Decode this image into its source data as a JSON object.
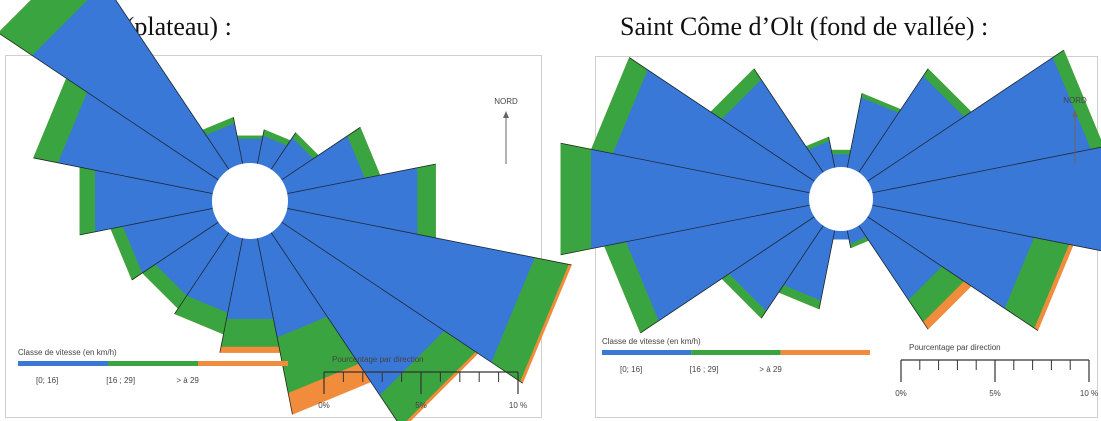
{
  "titles": {
    "left": "Aurillac (plateau) :",
    "right": "Saint Côme d’Olt (fond de vallée) :"
  },
  "colors": {
    "class_0_16": "#3a78d8",
    "class_16_29": "#3aa440",
    "class_gt_29": "#f08c3c",
    "rose_edges": "#1a1a1a",
    "calm_circle": "#ffffff"
  },
  "chart_data": [
    {
      "type": "wind-rose",
      "title": "Aurillac (plateau) :",
      "north_label": "NORD",
      "legend": {
        "title": "Classe de vitesse (en km/h)",
        "classes": [
          "[0; 16]",
          "[16 ; 29]",
          "> à 29"
        ]
      },
      "scale": {
        "title": "Pourcentage par direction",
        "tick_labels": [
          "0%",
          "5%",
          "10 %"
        ],
        "max_percent": 10
      },
      "directions_deg": [
        0,
        22.5,
        45,
        67.5,
        90,
        112.5,
        135,
        157.5,
        180,
        202.5,
        225,
        247.5,
        270,
        292.5,
        315,
        337.5
      ],
      "series": [
        {
          "name": "[0; 16]",
          "values": [
            0.8,
            0.9,
            1.2,
            2.5,
            4.2,
            8.0,
            6.2,
            3.2,
            2.6,
            2.4,
            2.4,
            2.9,
            3.8,
            5.0,
            7.1,
            1.3
          ]
        },
        {
          "name": "[16 ; 29]",
          "values": [
            0.1,
            0.2,
            0.2,
            0.5,
            0.6,
            1.1,
            1.2,
            1.8,
            0.9,
            0.7,
            0.5,
            0.4,
            0.5,
            0.8,
            1.3,
            0.2
          ]
        },
        {
          "name": "> à 29",
          "values": [
            0,
            0,
            0,
            0,
            0,
            0.1,
            0.1,
            0.7,
            0.2,
            0,
            0,
            0,
            0,
            0,
            0,
            0
          ]
        }
      ]
    },
    {
      "type": "wind-rose",
      "title": "Saint Côme d’Olt (fond de vallée) :",
      "north_label": "NORD",
      "legend": {
        "title": "Classe de vitesse (en km/h)",
        "classes": [
          "[0; 16]",
          "[16 ; 29]",
          "> à 29"
        ]
      },
      "scale": {
        "title": "Pourcentage par direction",
        "tick_labels": [
          "0%",
          "5%",
          "10 %"
        ],
        "max_percent": 10
      },
      "directions_deg": [
        0,
        22.5,
        45,
        67.5,
        90,
        112.5,
        135,
        157.5,
        180,
        202.5,
        225,
        247.5,
        270,
        292.5,
        315,
        337.5
      ],
      "series": [
        {
          "name": "[0; 16]",
          "values": [
            0.3,
            1.6,
            2.6,
            5.0,
            5.4,
            3.7,
            2.0,
            0.3,
            0.2,
            1.6,
            2.3,
            4.2,
            5.0,
            4.5,
            2.5,
            0.6
          ]
        },
        {
          "name": "[16 ; 29]",
          "values": [
            0.1,
            0.1,
            0.2,
            0.3,
            0.4,
            0.8,
            0.6,
            0.1,
            0,
            0.2,
            0.2,
            0.5,
            0.7,
            0.5,
            0.3,
            0.1
          ]
        },
        {
          "name": "> à 29",
          "values": [
            0,
            0,
            0,
            0,
            0,
            0.1,
            0.2,
            0,
            0,
            0,
            0,
            0,
            0,
            0,
            0,
            0
          ]
        }
      ]
    }
  ]
}
